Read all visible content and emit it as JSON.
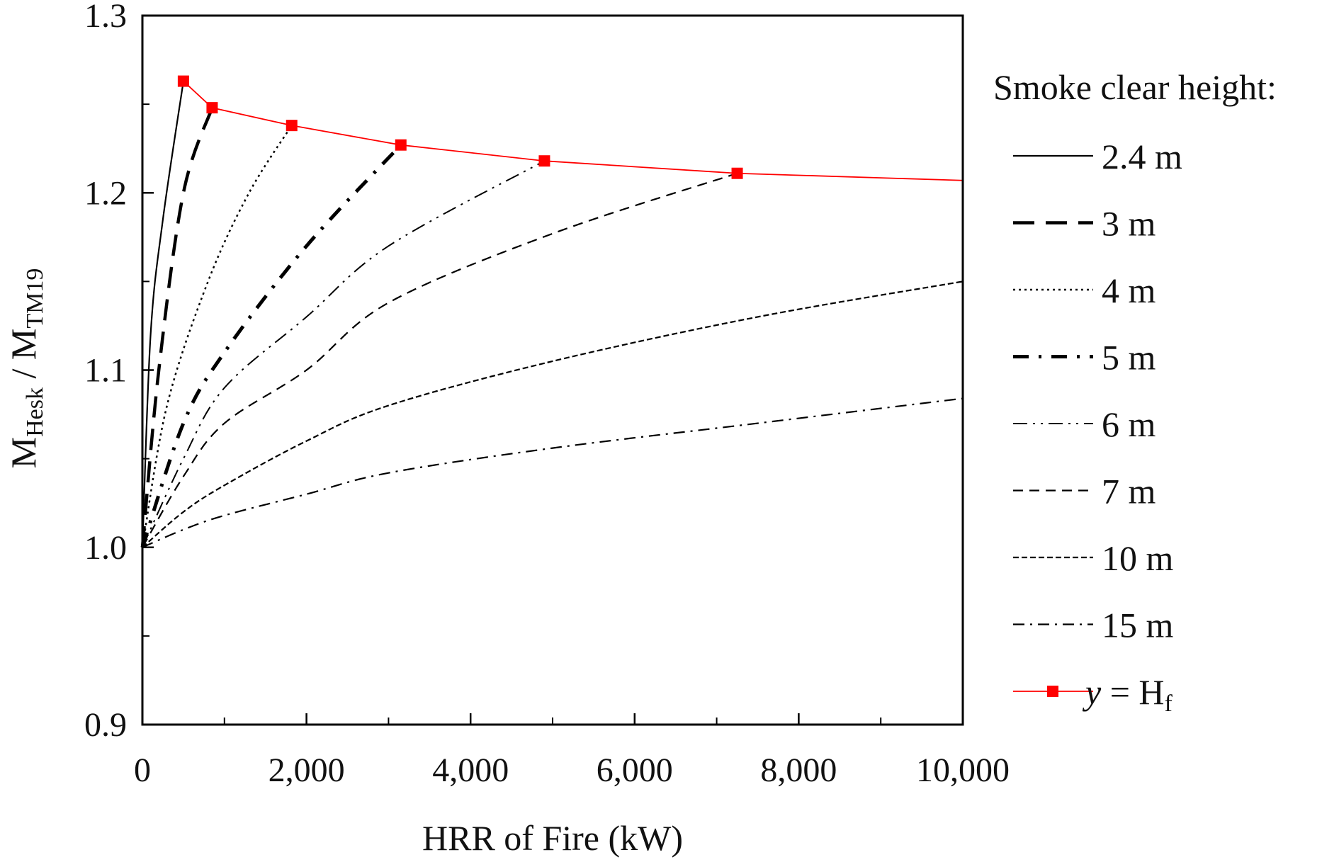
{
  "chart_data": {
    "type": "line",
    "title": "",
    "xlabel": "HRR of Fire (kW)",
    "ylabel_main": "M",
    "ylabel_sub1": "Hesk",
    "ylabel_sep": " / M",
    "ylabel_sub2": "TM19",
    "xlim": [
      0,
      10000
    ],
    "ylim": [
      0.9,
      1.3
    ],
    "x_ticks": [
      0,
      2000,
      4000,
      6000,
      8000,
      10000
    ],
    "x_tick_labels": [
      "0",
      "2,000",
      "4,000",
      "6,000",
      "8,000",
      "10,000"
    ],
    "x_minor_ticks": [
      1000,
      3000,
      5000,
      7000,
      9000
    ],
    "y_ticks": [
      0.9,
      1.0,
      1.1,
      1.2,
      1.3
    ],
    "y_tick_labels": [
      "0.9",
      "1.0",
      "1.1",
      "1.2",
      "1.3"
    ],
    "y_minor_ticks": [
      0.95,
      1.05,
      1.15,
      1.25
    ],
    "grid": false,
    "legend_title": "Smoke clear height:",
    "legend_placement": "right, outside plot",
    "series": [
      {
        "name": "2.4 m",
        "color": "#000000",
        "style": "solid",
        "points": [
          [
            0,
            1.0
          ],
          [
            100,
            1.12
          ],
          [
            250,
            1.185
          ],
          [
            500,
            1.263
          ]
        ]
      },
      {
        "name": "3 m",
        "color": "#000000",
        "style": "long-dash-bold",
        "points": [
          [
            0,
            1.0
          ],
          [
            200,
            1.1
          ],
          [
            500,
            1.2
          ],
          [
            850,
            1.248
          ]
        ]
      },
      {
        "name": "4 m",
        "color": "#000000",
        "style": "dotted",
        "points": [
          [
            0,
            1.0
          ],
          [
            300,
            1.08
          ],
          [
            800,
            1.15
          ],
          [
            1300,
            1.2
          ],
          [
            1820,
            1.238
          ]
        ]
      },
      {
        "name": "5 m",
        "color": "#000000",
        "style": "dash-dot-bold",
        "points": [
          [
            0,
            1.0
          ],
          [
            500,
            1.07
          ],
          [
            1000,
            1.11
          ],
          [
            2000,
            1.17
          ],
          [
            3150,
            1.227
          ]
        ]
      },
      {
        "name": "6 m",
        "color": "#000000",
        "style": "dash-dot-dot",
        "points": [
          [
            0,
            1.0
          ],
          [
            500,
            1.05
          ],
          [
            1000,
            1.09
          ],
          [
            2000,
            1.13
          ],
          [
            3000,
            1.17
          ],
          [
            4900,
            1.218
          ]
        ]
      },
      {
        "name": "7 m",
        "color": "#000000",
        "style": "dashed",
        "points": [
          [
            0,
            1.0
          ],
          [
            500,
            1.04
          ],
          [
            1000,
            1.07
          ],
          [
            2000,
            1.1
          ],
          [
            3000,
            1.138
          ],
          [
            5000,
            1.177
          ],
          [
            7250,
            1.211
          ]
        ]
      },
      {
        "name": "10 m",
        "color": "#000000",
        "style": "short-dash",
        "points": [
          [
            0,
            1.0
          ],
          [
            500,
            1.02
          ],
          [
            1000,
            1.035
          ],
          [
            2000,
            1.06
          ],
          [
            3000,
            1.08
          ],
          [
            5000,
            1.105
          ],
          [
            7500,
            1.13
          ],
          [
            10000,
            1.15
          ]
        ]
      },
      {
        "name": "15 m",
        "color": "#000000",
        "style": "dash-dot",
        "points": [
          [
            0,
            1.0
          ],
          [
            500,
            1.01
          ],
          [
            1000,
            1.018
          ],
          [
            2000,
            1.03
          ],
          [
            3000,
            1.042
          ],
          [
            5000,
            1.056
          ],
          [
            7500,
            1.07
          ],
          [
            10000,
            1.084
          ]
        ]
      },
      {
        "name_italic": "y",
        "name_rest": " = H",
        "name_sub": "f",
        "color": "#ff0000",
        "style": "solid-markers",
        "points": [
          [
            500,
            1.263
          ],
          [
            850,
            1.248
          ],
          [
            1820,
            1.238
          ],
          [
            3150,
            1.227
          ],
          [
            4900,
            1.218
          ],
          [
            7250,
            1.211
          ],
          [
            10000,
            1.207
          ]
        ],
        "marker_count": 6
      }
    ]
  }
}
